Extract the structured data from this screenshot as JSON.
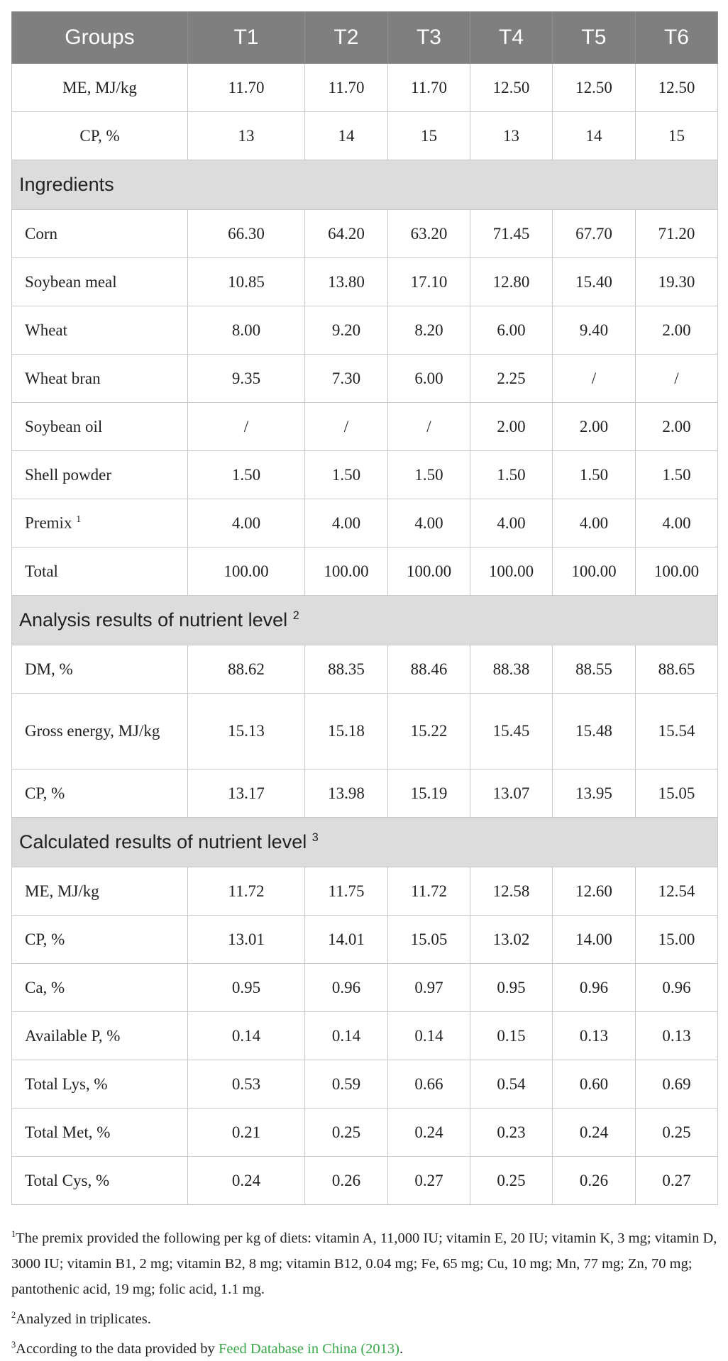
{
  "header": [
    "Groups",
    "T1",
    "T2",
    "T3",
    "T4",
    "T5",
    "T6"
  ],
  "top_rows": [
    {
      "label": "ME, MJ/kg",
      "values": [
        "11.70",
        "11.70",
        "11.70",
        "12.50",
        "12.50",
        "12.50"
      ]
    },
    {
      "label": "CP, %",
      "values": [
        "13",
        "14",
        "15",
        "13",
        "14",
        "15"
      ]
    }
  ],
  "sections": [
    {
      "title": "Ingredients",
      "sup": "",
      "rows": [
        {
          "label": "Corn",
          "values": [
            "66.30",
            "64.20",
            "63.20",
            "71.45",
            "67.70",
            "71.20"
          ]
        },
        {
          "label": "Soybean meal",
          "values": [
            "10.85",
            "13.80",
            "17.10",
            "12.80",
            "15.40",
            "19.30"
          ]
        },
        {
          "label": "Wheat",
          "values": [
            "8.00",
            "9.20",
            "8.20",
            "6.00",
            "9.40",
            "2.00"
          ]
        },
        {
          "label": "Wheat bran",
          "values": [
            "9.35",
            "7.30",
            "6.00",
            "2.25",
            "/",
            "/"
          ]
        },
        {
          "label": "Soybean oil",
          "values": [
            "/",
            "/",
            "/",
            "2.00",
            "2.00",
            "2.00"
          ]
        },
        {
          "label": "Shell powder",
          "values": [
            "1.50",
            "1.50",
            "1.50",
            "1.50",
            "1.50",
            "1.50"
          ]
        },
        {
          "label": "Premix",
          "sup": "1",
          "values": [
            "4.00",
            "4.00",
            "4.00",
            "4.00",
            "4.00",
            "4.00"
          ]
        },
        {
          "label": "Total",
          "values": [
            "100.00",
            "100.00",
            "100.00",
            "100.00",
            "100.00",
            "100.00"
          ]
        }
      ]
    },
    {
      "title": "Analysis results of nutrient level",
      "sup": "2",
      "rows": [
        {
          "label": "DM, %",
          "values": [
            "88.62",
            "88.35",
            "88.46",
            "88.38",
            "88.55",
            "88.65"
          ]
        },
        {
          "label": "Gross energy, MJ/kg",
          "tall": true,
          "values": [
            "15.13",
            "15.18",
            "15.22",
            "15.45",
            "15.48",
            "15.54"
          ]
        },
        {
          "label": "CP, %",
          "values": [
            "13.17",
            "13.98",
            "15.19",
            "13.07",
            "13.95",
            "15.05"
          ]
        }
      ]
    },
    {
      "title": "Calculated results of nutrient level",
      "sup": "3",
      "rows": [
        {
          "label": "ME, MJ/kg",
          "values": [
            "11.72",
            "11.75",
            "11.72",
            "12.58",
            "12.60",
            "12.54"
          ]
        },
        {
          "label": "CP, %",
          "values": [
            "13.01",
            "14.01",
            "15.05",
            "13.02",
            "14.00",
            "15.00"
          ]
        },
        {
          "label": "Ca, %",
          "values": [
            "0.95",
            "0.96",
            "0.97",
            "0.95",
            "0.96",
            "0.96"
          ]
        },
        {
          "label": "Available P, %",
          "values": [
            "0.14",
            "0.14",
            "0.14",
            "0.15",
            "0.13",
            "0.13"
          ]
        },
        {
          "label": "Total Lys, %",
          "values": [
            "0.53",
            "0.59",
            "0.66",
            "0.54",
            "0.60",
            "0.69"
          ]
        },
        {
          "label": "Total Met, %",
          "values": [
            "0.21",
            "0.25",
            "0.24",
            "0.23",
            "0.24",
            "0.25"
          ]
        },
        {
          "label": "Total Cys, %",
          "values": [
            "0.24",
            "0.26",
            "0.27",
            "0.25",
            "0.26",
            "0.27"
          ]
        }
      ]
    }
  ],
  "footnotes": [
    {
      "sup": "1",
      "text": "The premix provided the following per kg of diets: vitamin A, 11,000 IU; vitamin E, 20 IU; vitamin K, 3 mg; vitamin D, 3000 IU; vitamin B1, 2 mg; vitamin B2, 8 mg; vitamin B12, 0.04 mg; Fe, 65 mg; Cu, 10 mg; Mn, 77 mg; Zn, 70 mg; pantothenic acid, 19 mg; folic acid, 1.1 mg."
    },
    {
      "sup": "2",
      "text": "Analyzed in triplicates."
    },
    {
      "sup": "3",
      "text": "According to the data provided by ",
      "link": "Feed Database in China (2013)",
      "after": "."
    }
  ],
  "colors": {
    "header_bg": "#7f7f7f",
    "section_bg": "#dcdcdc",
    "link": "#3aa84a"
  }
}
